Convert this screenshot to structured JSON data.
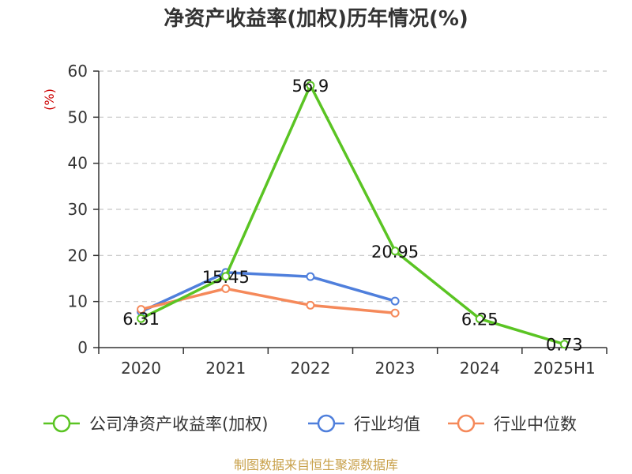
{
  "chart_data": {
    "type": "line",
    "title": "净资产收益率(加权)历年情况(%)",
    "ylabel": "(%)",
    "categories": [
      "2020",
      "2021",
      "2022",
      "2023",
      "2024",
      "2025H1"
    ],
    "ylim": [
      0,
      60
    ],
    "yticks": [
      0,
      10,
      20,
      30,
      40,
      50,
      60
    ],
    "grid": true,
    "legend_position": "bottom",
    "series": [
      {
        "name": "公司净资产收益率(加权)",
        "color": "#5ac423",
        "values": [
          6.31,
          15.45,
          56.9,
          20.95,
          6.25,
          0.73
        ],
        "labels": [
          "6.31",
          "15.45",
          "56.9",
          "20.95",
          "6.25",
          "0.73"
        ]
      },
      {
        "name": "行业均值",
        "color": "#4f7fdc",
        "values": [
          7.8,
          16.3,
          15.4,
          10.1,
          null,
          null
        ]
      },
      {
        "name": "行业中位数",
        "color": "#f5895a",
        "values": [
          8.3,
          12.8,
          9.2,
          7.5,
          null,
          null
        ]
      }
    ]
  },
  "source": "制图数据来自恒生聚源数据库"
}
